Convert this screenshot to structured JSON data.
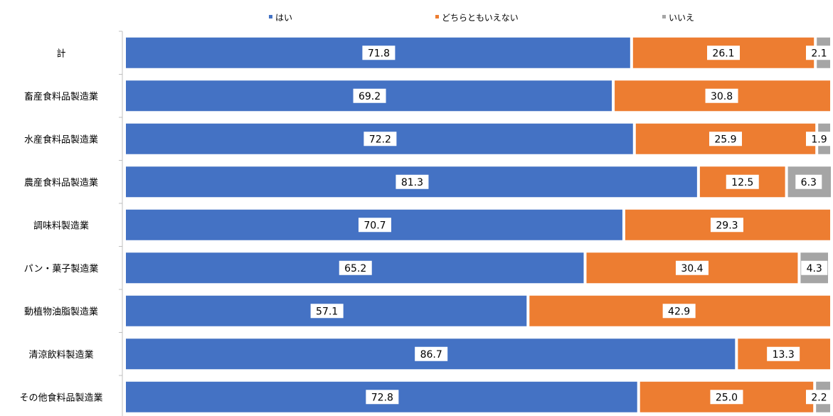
{
  "chart_data": {
    "type": "bar",
    "orientation": "horizontal",
    "stacked": true,
    "xlim": [
      0,
      100
    ],
    "grid": false,
    "legend_position": "top",
    "categories": [
      "計",
      "畜産食料品製造業",
      "水産食料品製造業",
      "農産食料品製造業",
      "調味料製造業",
      "パン・菓子製造業",
      "動植物油脂製造業",
      "清涼飲料製造業",
      "その他食料品製造業"
    ],
    "series": [
      {
        "name": "はい",
        "color": "#4472C4",
        "values": [
          71.8,
          69.2,
          72.2,
          81.3,
          70.7,
          65.2,
          57.1,
          86.7,
          72.8
        ]
      },
      {
        "name": "どちらともいえない",
        "color": "#ED7D31",
        "values": [
          26.1,
          30.8,
          25.9,
          12.5,
          29.3,
          30.4,
          42.9,
          13.3,
          25.0
        ]
      },
      {
        "name": "いいえ",
        "color": "#A5A5A5",
        "values": [
          2.1,
          null,
          1.9,
          6.3,
          null,
          4.3,
          null,
          null,
          2.2
        ]
      }
    ]
  }
}
